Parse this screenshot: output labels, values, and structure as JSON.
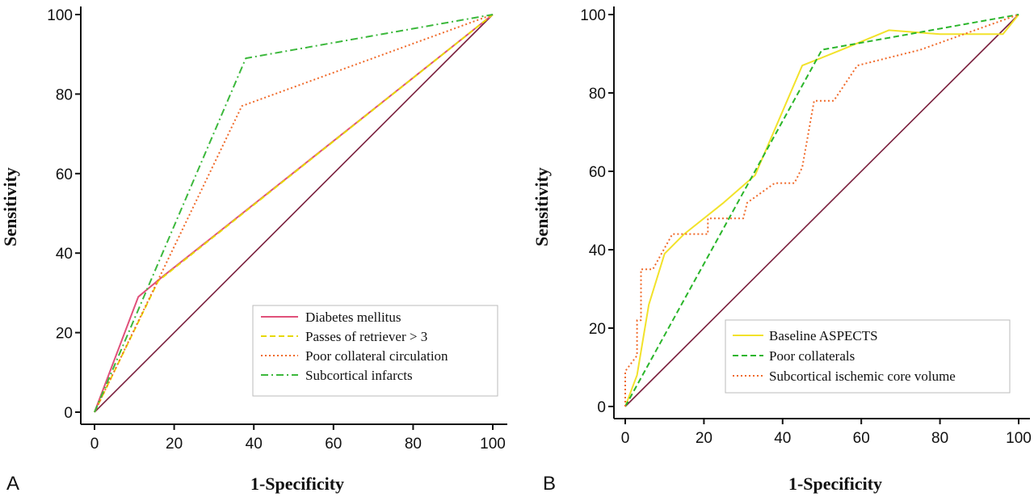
{
  "chart_data": [
    {
      "panel": "A",
      "type": "line",
      "xlabel": "1-Specificity",
      "ylabel": "Sensitivity",
      "xlim": [
        0,
        100
      ],
      "ylim": [
        0,
        100
      ],
      "xticks": [
        "0",
        "20",
        "40",
        "60",
        "80",
        "100"
      ],
      "yticks": [
        "0",
        "20",
        "40",
        "60",
        "80",
        "100"
      ],
      "grid": false,
      "legend_position": "bottom-right",
      "reference_line": {
        "x": [
          0,
          100
        ],
        "y": [
          0,
          100
        ],
        "color": "#7a1f3d"
      },
      "series": [
        {
          "name": "Diabetes mellitus",
          "color": "#e0507a",
          "dash": "solid",
          "points": [
            [
              0,
              0
            ],
            [
              11,
              29
            ],
            [
              17,
              34
            ],
            [
              100,
              100
            ]
          ]
        },
        {
          "name": "Passes of retriever > 3",
          "color": "#e6d800",
          "dash": "dashed",
          "points": [
            [
              0,
              0
            ],
            [
              16,
              33
            ],
            [
              100,
              100
            ]
          ]
        },
        {
          "name": "Poor collateral circulation",
          "color": "#f06a2a",
          "dash": "dotted",
          "points": [
            [
              0,
              0
            ],
            [
              37,
              77
            ],
            [
              100,
              100
            ]
          ]
        },
        {
          "name": "Subcortical infarcts",
          "color": "#3cb83c",
          "dash": "dashdot",
          "points": [
            [
              0,
              0
            ],
            [
              38,
              89
            ],
            [
              100,
              100
            ]
          ]
        }
      ]
    },
    {
      "panel": "B",
      "type": "line",
      "xlabel": "1-Specificity",
      "ylabel": "Sensitivity",
      "xlim": [
        0,
        100
      ],
      "ylim": [
        0,
        100
      ],
      "xticks": [
        "0",
        "20",
        "40",
        "60",
        "80",
        "100"
      ],
      "yticks": [
        "0",
        "20",
        "40",
        "60",
        "80",
        "100"
      ],
      "grid": false,
      "legend_position": "bottom-right",
      "reference_line": {
        "x": [
          0,
          100
        ],
        "y": [
          0,
          100
        ],
        "color": "#7a1f3d"
      },
      "series": [
        {
          "name": "Baseline ASPECTS",
          "color": "#f2e22a",
          "dash": "solid",
          "points": [
            [
              0,
              0
            ],
            [
              3,
              8
            ],
            [
              6,
              26
            ],
            [
              10,
              39
            ],
            [
              15,
              44
            ],
            [
              25,
              52
            ],
            [
              33,
              59
            ],
            [
              45,
              87
            ],
            [
              55,
              91
            ],
            [
              67,
              96
            ],
            [
              80,
              95
            ],
            [
              96,
              95
            ],
            [
              100,
              100
            ]
          ]
        },
        {
          "name": "Poor collaterals",
          "color": "#2ab52a",
          "dash": "dashed",
          "points": [
            [
              0,
              0
            ],
            [
              50,
              91
            ],
            [
              100,
              100
            ]
          ]
        },
        {
          "name": "Subcortical ischemic core volume",
          "color": "#f06a2a",
          "dash": "dotted",
          "points": [
            [
              0,
              0
            ],
            [
              0,
              9
            ],
            [
              3,
              13
            ],
            [
              3,
              22
            ],
            [
              4,
              22
            ],
            [
              4,
              35
            ],
            [
              7,
              35
            ],
            [
              12,
              44
            ],
            [
              21,
              44
            ],
            [
              21,
              48
            ],
            [
              30,
              48
            ],
            [
              31,
              52
            ],
            [
              38,
              57
            ],
            [
              43,
              57
            ],
            [
              45,
              61
            ],
            [
              48,
              78
            ],
            [
              53,
              78
            ],
            [
              59,
              87
            ],
            [
              75,
              91
            ],
            [
              100,
              100
            ]
          ]
        }
      ]
    }
  ]
}
